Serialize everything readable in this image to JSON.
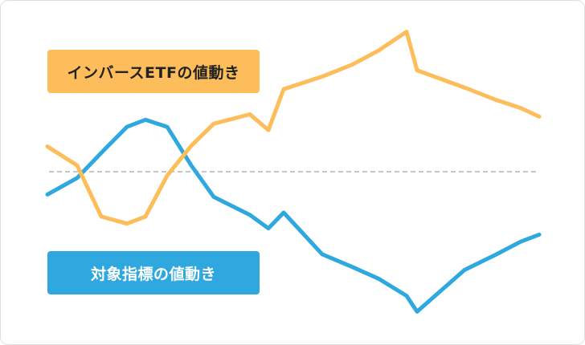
{
  "labels": {
    "inverse_etf": "インバースETFの値動き",
    "underlying_index": "対象指標の値動き"
  },
  "colors": {
    "inverse_etf": "#fdbd5a",
    "underlying_index": "#2ea8df",
    "baseline": "#b3b3b3"
  },
  "series": {
    "underlying_index": [
      -2.9,
      -0.8,
      2.4,
      5.7,
      6.6,
      5.7,
      0.8,
      -3.2,
      -5.5,
      -7.2,
      -5.2,
      -10.5,
      -12.1,
      -13.6,
      -15.8,
      -17.8,
      -12.5,
      -10.5,
      -8.9,
      -8.0
    ],
    "inverse_etf": [
      3.2,
      0.8,
      -5.7,
      -6.6,
      -5.7,
      -0.5,
      3.3,
      6.1,
      7.3,
      5.3,
      10.5,
      12.1,
      13.6,
      15.4,
      17.8,
      12.9,
      10.7,
      9.1,
      8.1,
      7.0
    ]
  }
}
